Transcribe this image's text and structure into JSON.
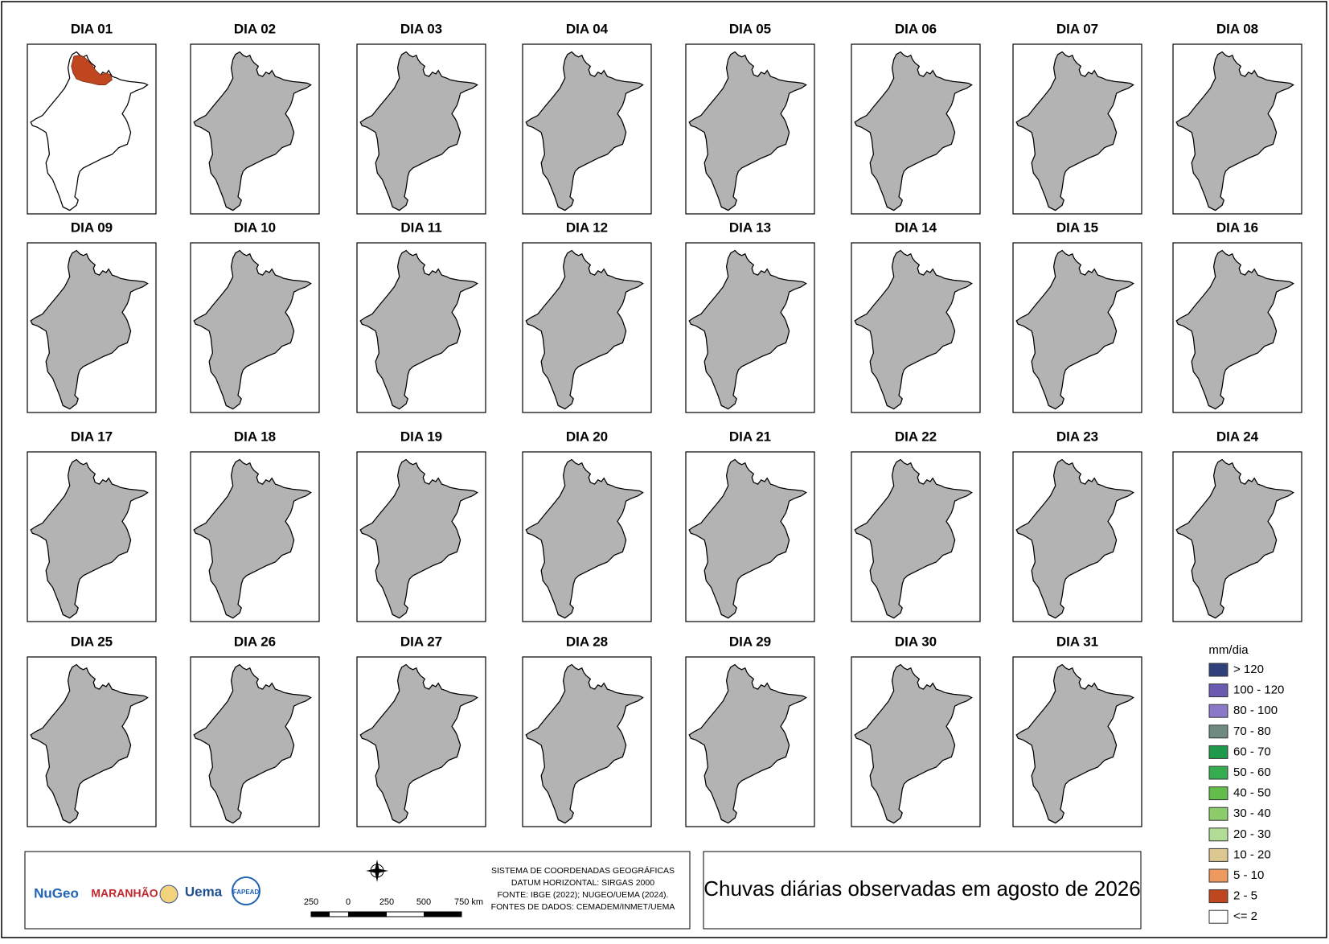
{
  "maps": [
    {
      "title": "DIA 01",
      "fill": "#ffffff",
      "patch": "#c0461f"
    },
    {
      "title": "DIA 02",
      "fill": "#b3b3b3"
    },
    {
      "title": "DIA 03",
      "fill": "#b3b3b3"
    },
    {
      "title": "DIA 04",
      "fill": "#b3b3b3"
    },
    {
      "title": "DIA 05",
      "fill": "#b3b3b3"
    },
    {
      "title": "DIA 06",
      "fill": "#b3b3b3"
    },
    {
      "title": "DIA 07",
      "fill": "#b3b3b3"
    },
    {
      "title": "DIA 08",
      "fill": "#b3b3b3"
    },
    {
      "title": "DIA 09",
      "fill": "#b3b3b3"
    },
    {
      "title": "DIA 10",
      "fill": "#b3b3b3"
    },
    {
      "title": "DIA 11",
      "fill": "#b3b3b3"
    },
    {
      "title": "DIA 12",
      "fill": "#b3b3b3"
    },
    {
      "title": "DIA 13",
      "fill": "#b3b3b3"
    },
    {
      "title": "DIA 14",
      "fill": "#b3b3b3"
    },
    {
      "title": "DIA 15",
      "fill": "#b3b3b3"
    },
    {
      "title": "DIA 16",
      "fill": "#b3b3b3"
    },
    {
      "title": "DIA 17",
      "fill": "#b3b3b3"
    },
    {
      "title": "DIA 18",
      "fill": "#b3b3b3"
    },
    {
      "title": "DIA 19",
      "fill": "#b3b3b3"
    },
    {
      "title": "DIA 20",
      "fill": "#b3b3b3"
    },
    {
      "title": "DIA 21",
      "fill": "#b3b3b3"
    },
    {
      "title": "DIA 22",
      "fill": "#b3b3b3"
    },
    {
      "title": "DIA 23",
      "fill": "#b3b3b3"
    },
    {
      "title": "DIA 24",
      "fill": "#b3b3b3"
    },
    {
      "title": "DIA 25",
      "fill": "#b3b3b3"
    },
    {
      "title": "DIA 26",
      "fill": "#b3b3b3"
    },
    {
      "title": "DIA 27",
      "fill": "#b3b3b3"
    },
    {
      "title": "DIA 28",
      "fill": "#b3b3b3"
    },
    {
      "title": "DIA 29",
      "fill": "#b3b3b3"
    },
    {
      "title": "DIA 30",
      "fill": "#b3b3b3"
    },
    {
      "title": "DIA 31",
      "fill": "#b3b3b3"
    }
  ],
  "legend": {
    "title": "mm/dia",
    "items": [
      {
        "label": "> 120",
        "color": "#2e3f7a"
      },
      {
        "label": "100 - 120",
        "color": "#6a5bb0"
      },
      {
        "label": "80 - 100",
        "color": "#8a78c8"
      },
      {
        "label": "70 - 80",
        "color": "#6f8a80"
      },
      {
        "label": "60 - 70",
        "color": "#1f9a4a"
      },
      {
        "label": "50 - 60",
        "color": "#35ac4f"
      },
      {
        "label": "40 - 50",
        "color": "#62bd4a"
      },
      {
        "label": "30 - 40",
        "color": "#8ccc6a"
      },
      {
        "label": "20 - 30",
        "color": "#b1dc95"
      },
      {
        "label": "10 - 20",
        "color": "#dcc791"
      },
      {
        "label": "5 - 10",
        "color": "#ee9a5e"
      },
      {
        "label": "2 - 5",
        "color": "#c0461f"
      },
      {
        "label": "<= 2",
        "color": "#ffffff"
      }
    ]
  },
  "footer": {
    "logos": [
      "NuGeo",
      "MARANHÃO",
      "Uema",
      "FAPEAD"
    ],
    "scale": [
      "250",
      "0",
      "250",
      "500",
      "750 km"
    ],
    "info": [
      "SISTEMA DE COORDENADAS GEOGRÁFICAS",
      "DATUM HORIZONTAL: SIRGAS 2000",
      "FONTE: IBGE (2022); NUGEO/UEMA (2024).",
      "FONTES DE DADOS: CEMADEM/INMET/UEMA"
    ]
  },
  "title": "Chuvas diárias observadas em agosto de 2026"
}
